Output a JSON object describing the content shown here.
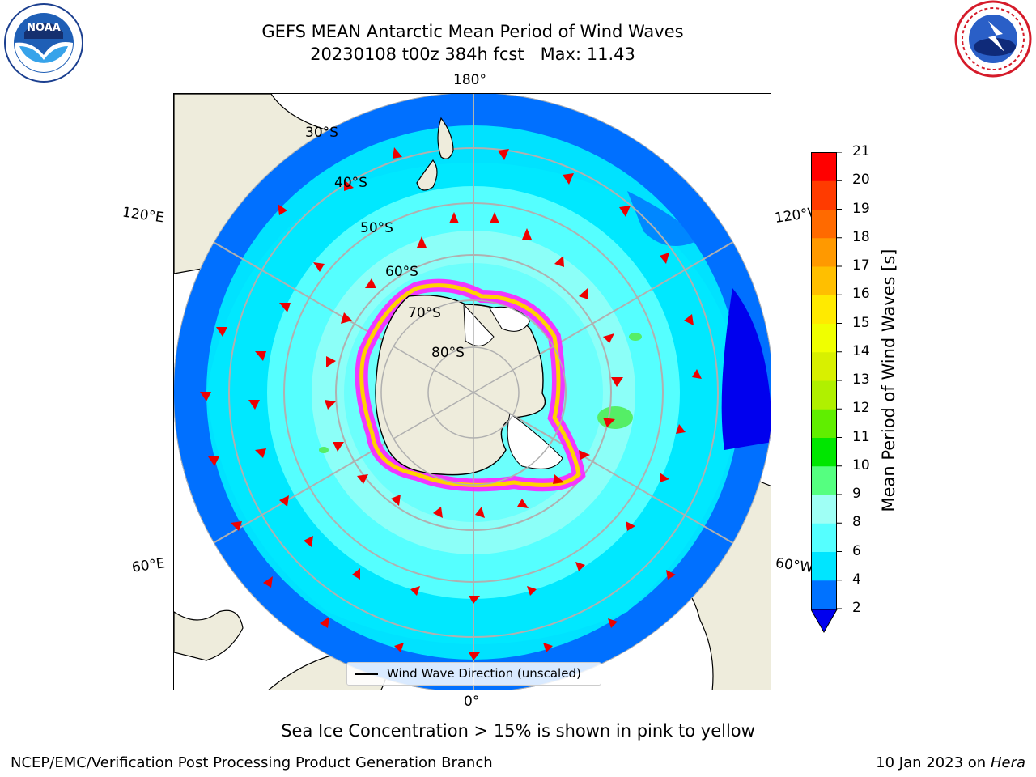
{
  "title": {
    "line1": "GEFS MEAN Antarctic Mean Period of Wind Waves",
    "line2": "20230108 t00z 384h fcst   Max: 11.43"
  },
  "logos": {
    "left": {
      "icon": "noaa-logo-icon",
      "text": "NOAA"
    },
    "right": {
      "icon": "nws-logo-icon"
    }
  },
  "map": {
    "projection": "south-polar-stereographic",
    "meridian_labels": {
      "top": "180°",
      "bottom": "0°",
      "left_upper": "120°E",
      "left_lower": "60°E",
      "right_upper": "120°W",
      "right_lower": "60°W"
    },
    "latitude_labels": [
      "30°S",
      "40°S",
      "50°S",
      "60°S",
      "70°S",
      "80°S"
    ],
    "legend": {
      "label": "Wind Wave Direction (unscaled)"
    },
    "colors": {
      "land": "#eeecdc",
      "deep_blue": "#0000ee",
      "blue": "#0070ff",
      "cyan": "#00e8ff",
      "light_cyan": "#55ffff",
      "pale_cyan": "#9ffff5",
      "green": "#55ee66",
      "ice_pink": "#ff22ff",
      "ice_yellow": "#ffd200",
      "arrow": "#ee0000"
    }
  },
  "colorbar": {
    "label": "Mean Period of Wind Waves [s]",
    "ticks": [
      "2",
      "4",
      "6",
      "8",
      "9",
      "10",
      "11",
      "12",
      "13",
      "14",
      "15",
      "16",
      "17",
      "18",
      "19",
      "20",
      "21"
    ],
    "colors": [
      "#0072ff",
      "#00e5ff",
      "#55ffff",
      "#9ffff5",
      "#55ff80",
      "#00e600",
      "#60ee00",
      "#b0f000",
      "#d8f000",
      "#f0ff00",
      "#ffea00",
      "#ffbf00",
      "#ff9900",
      "#ff6a00",
      "#ff3b00",
      "#ff0000"
    ],
    "extend_color": "#0000ee"
  },
  "caption": "Sea Ice Concentration > 15% is shown in pink to yellow",
  "footer": {
    "left": "NCEP/EMC/Verification Post Processing Product Generation Branch",
    "right_date": "10 Jan 2023 on ",
    "right_machine": "Hera"
  }
}
